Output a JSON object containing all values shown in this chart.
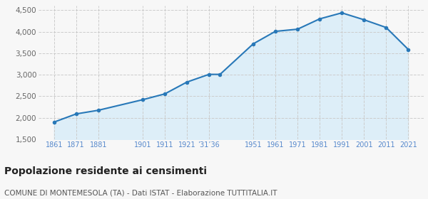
{
  "years": [
    1861,
    1871,
    1881,
    1901,
    1911,
    1921,
    1931,
    1936,
    1951,
    1961,
    1971,
    1981,
    1991,
    2001,
    2011,
    2021
  ],
  "population": [
    1900,
    2090,
    2175,
    2420,
    2555,
    2830,
    3010,
    3010,
    3720,
    4010,
    4060,
    4300,
    4440,
    4280,
    4100,
    3590
  ],
  "line_color": "#2878b8",
  "fill_color": "#ddeef8",
  "marker_color": "#2878b8",
  "grid_color": "#cccccc",
  "background_color": "#f7f7f7",
  "ylim": [
    1500,
    4600
  ],
  "yticks": [
    1500,
    2000,
    2500,
    3000,
    3500,
    4000,
    4500
  ],
  "tick_positions": [
    1861,
    1871,
    1881,
    1901,
    1911,
    1921,
    1931,
    1951,
    1961,
    1971,
    1981,
    1991,
    2001,
    2011,
    2021
  ],
  "tick_labels": [
    "1861",
    "1871",
    "1881",
    "1901",
    "1911",
    "1921",
    "’31’36",
    "1951",
    "1961",
    "1971",
    "1981",
    "1991",
    "2001",
    "2011",
    "2021"
  ],
  "xlim_left": 1854,
  "xlim_right": 2028,
  "title": "Popolazione residente ai censimenti",
  "subtitle": "COMUNE DI MONTEMESOLA (TA) - Dati ISTAT - Elaborazione TUTTITALIA.IT",
  "title_fontsize": 10,
  "subtitle_fontsize": 7.5,
  "tick_label_color": "#5588cc",
  "tick_label_fontsize": 7,
  "ytick_label_color": "#666666",
  "ytick_label_fontsize": 7.5
}
